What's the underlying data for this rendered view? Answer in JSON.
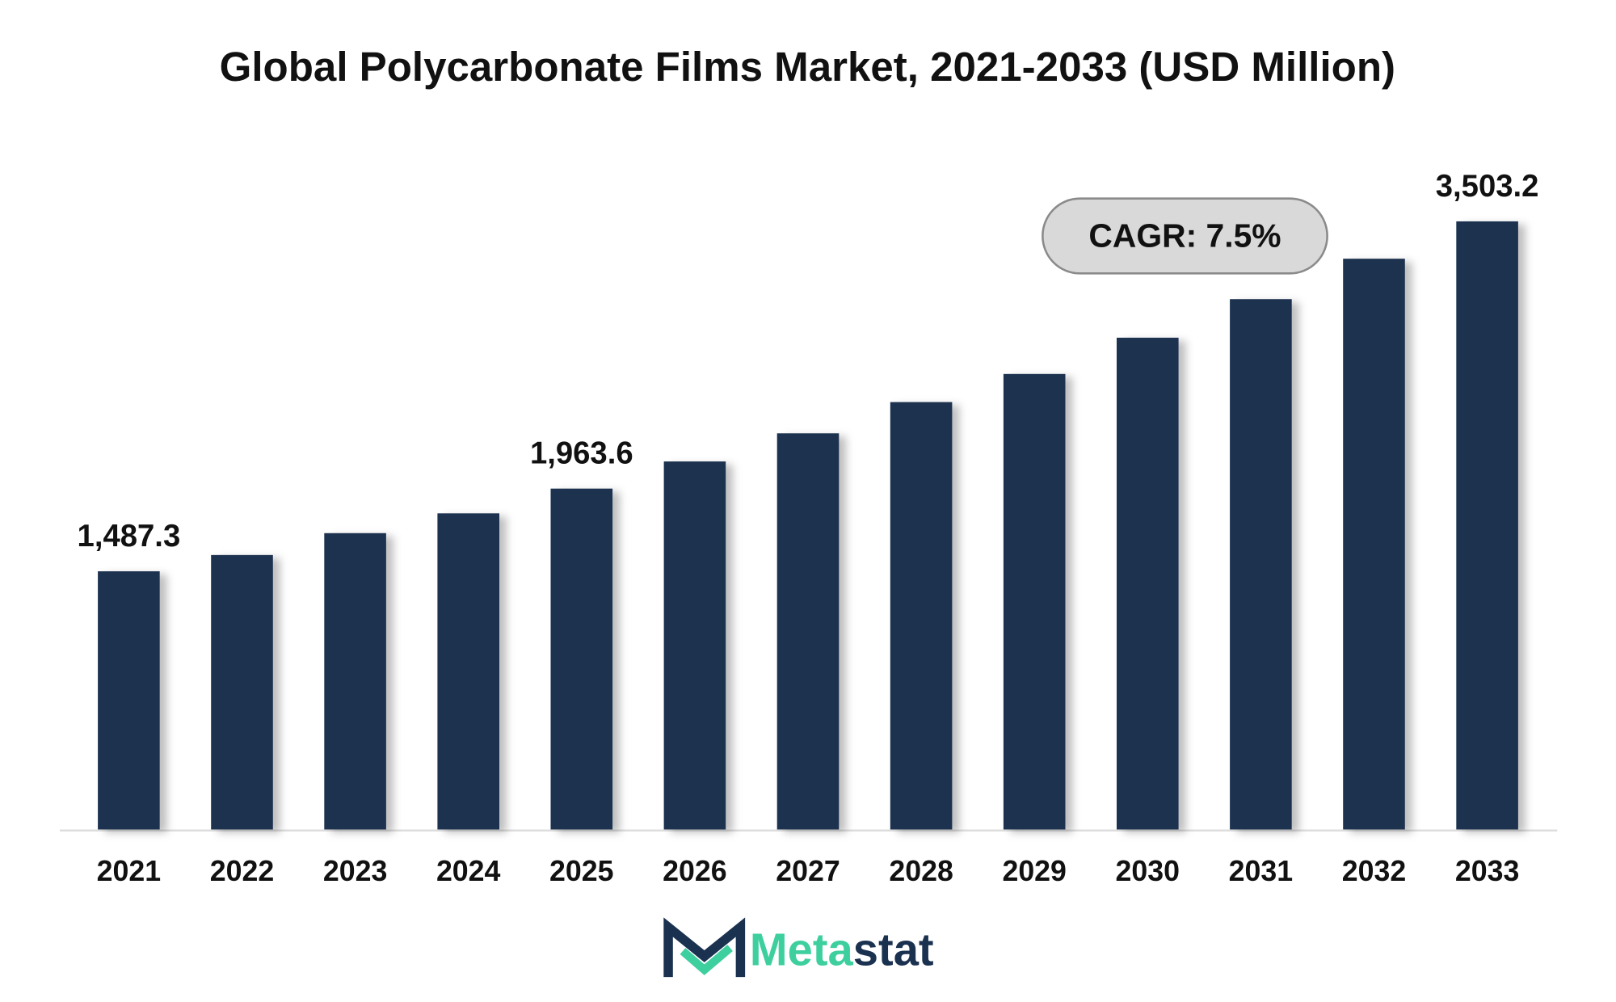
{
  "chart_data": {
    "type": "bar",
    "title": "Global Polycarbonate Films Market, 2021-2033 (USD Million)",
    "categories": [
      "2021",
      "2022",
      "2023",
      "2024",
      "2025",
      "2026",
      "2027",
      "2028",
      "2029",
      "2030",
      "2031",
      "2032",
      "2033"
    ],
    "values": [
      1487.3,
      1581,
      1707,
      1821,
      1963.6,
      2120,
      2282,
      2462,
      2624,
      2833,
      3055,
      3288,
      3503.2
    ],
    "value_labels": [
      "1,487.3",
      null,
      null,
      null,
      "1,963.6",
      null,
      null,
      null,
      null,
      null,
      null,
      null,
      "3,503.2"
    ],
    "color": "#1b3150",
    "ylim": [
      0,
      4000
    ],
    "annotation": "CAGR: 7.5%",
    "logo": [
      "Meta",
      "stat"
    ]
  }
}
